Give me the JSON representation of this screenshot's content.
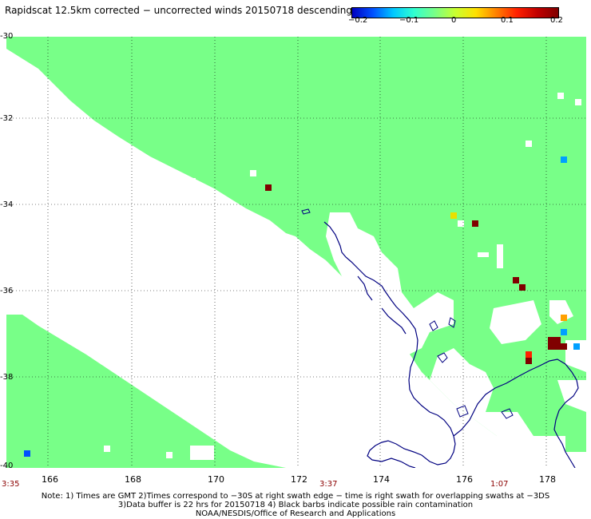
{
  "title": "Rapidscat 12.5km corrected − uncorrected winds 20150718 descending",
  "colorbar": {
    "ticks": [
      "−0.2",
      "−0.1",
      "0",
      "0.1",
      "0.2"
    ],
    "colors": [
      "#0000c0",
      "#0050ff",
      "#00c8ff",
      "#30ffd0",
      "#78ff88",
      "#c8ff30",
      "#ffe000",
      "#ff8000",
      "#ff2000",
      "#c00000",
      "#800000"
    ]
  },
  "map": {
    "lat_labels": [
      "-30",
      "-32",
      "-34",
      "-36",
      "-38",
      "-40"
    ],
    "lon_labels": [
      "166",
      "168",
      "170",
      "172",
      "174",
      "176",
      "178"
    ],
    "time_labels": [
      "3:35",
      "3:37",
      "1:07"
    ],
    "land_color": "#000080",
    "zero_color": "#78ff88"
  },
  "notes": [
    "Note: 1) Times are GMT 2)Times correspond to −30S at right swath edge − time is right swath for overlapping swaths at −3DS",
    "3)Data buffer is 22 hrs for 20150718 4) Black barbs indicate possible rain contamination",
    "NOAA/NESDIS/Office of Research and Applications"
  ]
}
